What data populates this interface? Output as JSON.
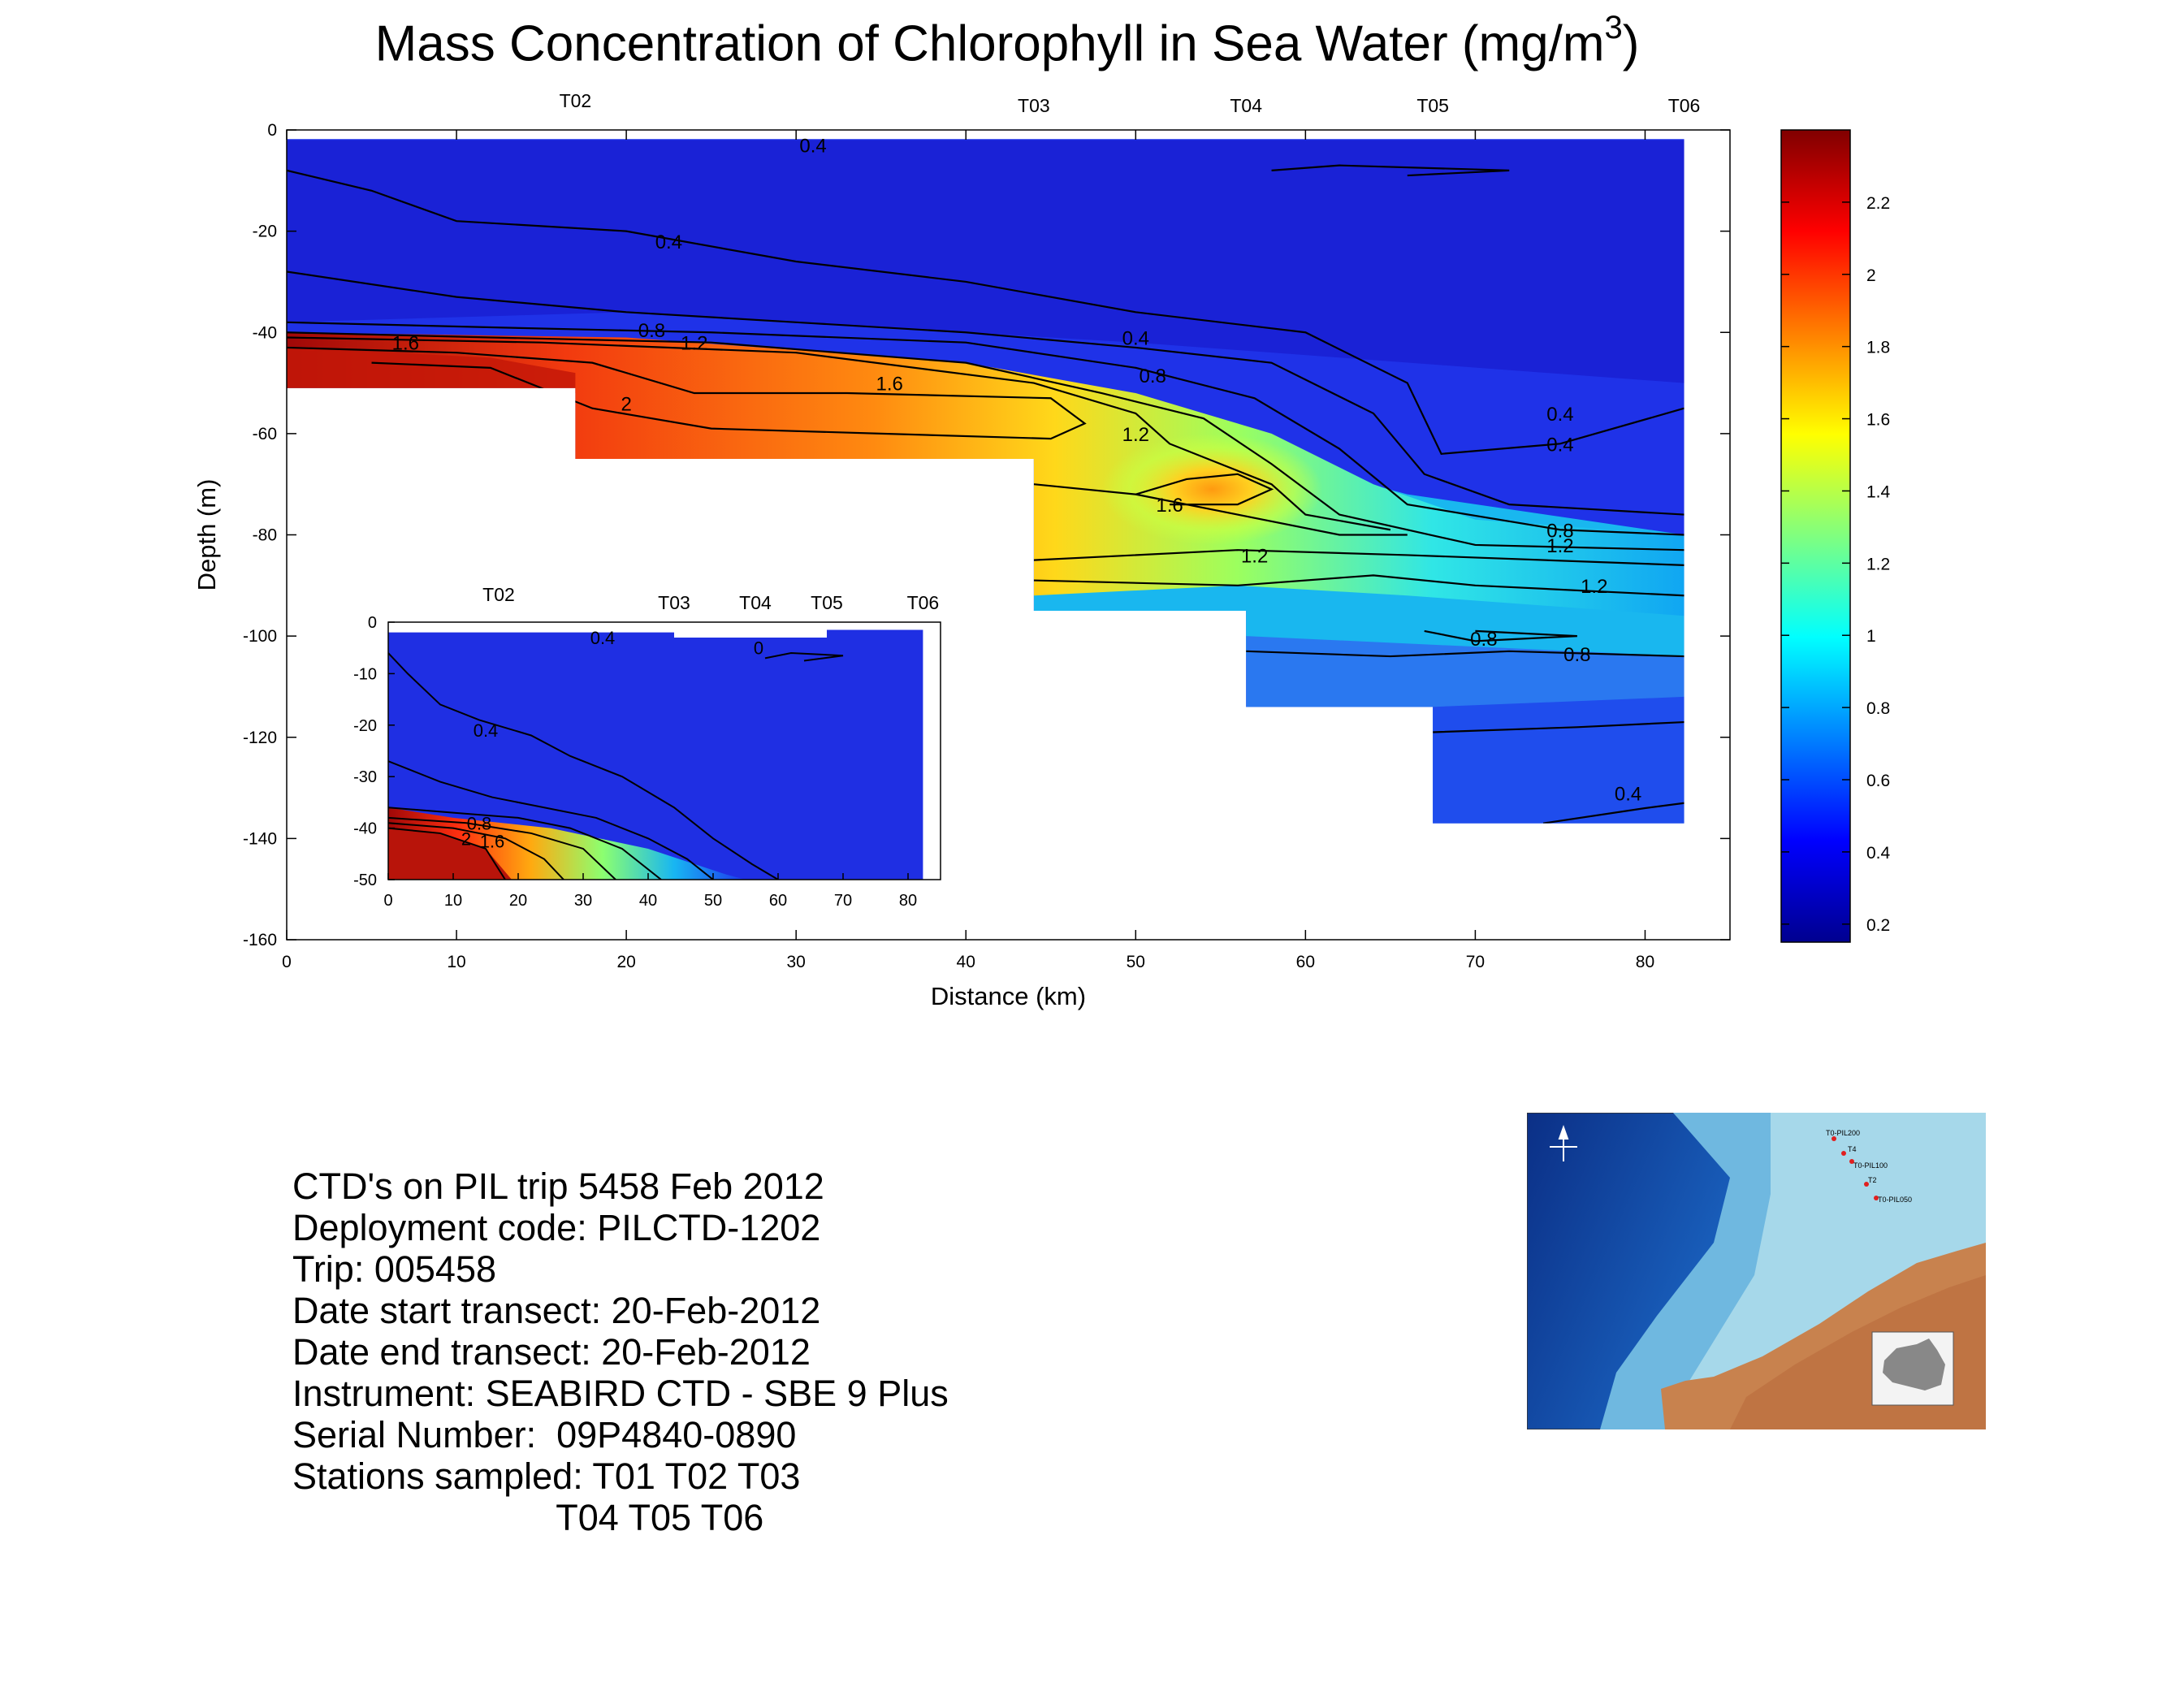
{
  "title": {
    "main": "Mass Concentration of Chlorophyll in Sea Water (mg/m",
    "sup": "3",
    "close": ")"
  },
  "chart_data": [
    {
      "type": "heatmap",
      "name": "main-section",
      "xlabel": "Distance (km)",
      "ylabel": "Depth (m)",
      "xlim": [
        0,
        85
      ],
      "ylim": [
        -160,
        0
      ],
      "xticks": [
        "0",
        "10",
        "20",
        "30",
        "40",
        "50",
        "60",
        "70",
        "80"
      ],
      "yticks": [
        "0",
        "-20",
        "-40",
        "-60",
        "-80",
        "-100",
        "-120",
        "-140",
        "-160"
      ],
      "stations": [
        {
          "name": "T02",
          "x": 17
        },
        {
          "name": "T03",
          "x": 44
        },
        {
          "name": "T04",
          "x": 56.5
        },
        {
          "name": "T05",
          "x": 67.5
        },
        {
          "name": "T06",
          "x": 82.3
        }
      ],
      "profile_bottoms": [
        {
          "x_start": 0,
          "x_end": 17,
          "depth": -51
        },
        {
          "x_start": 17,
          "x_end": 44,
          "depth": -65
        },
        {
          "x_start": 44,
          "x_end": 56.5,
          "depth": -95
        },
        {
          "x_start": 56.5,
          "x_end": 67.5,
          "depth": -114
        },
        {
          "x_start": 67.5,
          "x_end": 82.3,
          "depth": -137
        }
      ],
      "contour_labels": [
        "0.4",
        "0.4",
        "0.8",
        "1.2",
        "1.6",
        "2",
        "1.6",
        "0.4",
        "0.8",
        "1.2",
        "1.6",
        "1.2",
        "0.4",
        "0.4",
        "0.8",
        "1.2",
        "1.2",
        "0.8",
        "0.8",
        "0.4"
      ],
      "colorbar": {
        "ticks": [
          "2.2",
          "2",
          "1.8",
          "1.6",
          "1.4",
          "1.2",
          "1",
          "0.8",
          "0.6",
          "0.4",
          "0.2"
        ],
        "range": [
          0.15,
          2.4
        ],
        "colormap": "jet"
      },
      "grid": false
    },
    {
      "type": "heatmap",
      "name": "inset-upper-50m",
      "xlim": [
        0,
        85
      ],
      "ylim": [
        -50,
        0
      ],
      "xticks": [
        "0",
        "10",
        "20",
        "30",
        "40",
        "50",
        "60",
        "70",
        "80"
      ],
      "yticks": [
        "0",
        "-10",
        "-20",
        "-30",
        "-40",
        "-50"
      ],
      "stations": [
        {
          "name": "T02",
          "x": 17
        },
        {
          "name": "T03",
          "x": 44
        },
        {
          "name": "T04",
          "x": 56.5
        },
        {
          "name": "T05",
          "x": 67.5
        },
        {
          "name": "T06",
          "x": 82.3
        }
      ],
      "contour_labels": [
        "0.4",
        "0.4",
        "0.8",
        "2",
        "1.6",
        "0"
      ]
    }
  ],
  "info": {
    "lines": [
      "CTD's on PIL trip 5458 Feb 2012",
      "Deployment code: PILCTD-1202",
      "Trip: 005458",
      "Date start transect: 20-Feb-2012",
      "Date end transect: 20-Feb-2012",
      "Instrument: SEABIRD CTD - SBE 9 Plus",
      "Serial Number:  09P4840-0890",
      "Stations sampled: T01 T02 T03",
      "                          T04 T05 T06"
    ]
  },
  "map": {
    "station_labels": [
      "T0-PIL200",
      "T4",
      "T0-PIL100",
      "T2",
      "T0-PIL050"
    ],
    "colors": {
      "deep_sea": "#0d3f9c",
      "shelf": "#7ec2e0",
      "land": "#c97a45"
    }
  }
}
